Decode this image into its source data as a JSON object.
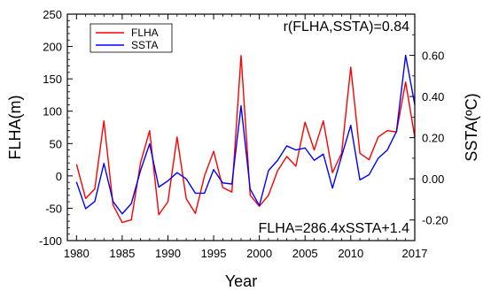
{
  "chart_data": {
    "type": "line",
    "title": "",
    "xlabel": "Year",
    "ylabel_left": "FLHA(m)",
    "ylabel_right": "SSTA(ºC)",
    "xlim": [
      1979,
      2017
    ],
    "ylim_left": [
      -100,
      250
    ],
    "ylim_right": [
      -0.3,
      0.8
    ],
    "x_ticks": [
      1980,
      1985,
      1990,
      1995,
      2000,
      2005,
      2010,
      2017
    ],
    "y_ticks_left": [
      -100,
      -50,
      0,
      50,
      100,
      150,
      200,
      250
    ],
    "y_ticks_right": [
      -0.2,
      0.0,
      0.2,
      0.4,
      0.6
    ],
    "y_tick_labels_left": [
      "-100",
      "-50",
      "0",
      "50",
      "100",
      "150",
      "200",
      "250"
    ],
    "y_tick_labels_right": [
      "-0.20",
      "0.00",
      "0.20",
      "0.40",
      "0.60"
    ],
    "x": [
      1980,
      1981,
      1982,
      1983,
      1984,
      1985,
      1986,
      1987,
      1988,
      1989,
      1990,
      1991,
      1992,
      1993,
      1994,
      1995,
      1996,
      1997,
      1998,
      1999,
      2000,
      2001,
      2002,
      2003,
      2004,
      2005,
      2006,
      2007,
      2008,
      2009,
      2010,
      2011,
      2012,
      2013,
      2014,
      2015,
      2016,
      2017
    ],
    "series": [
      {
        "name": "FLHA",
        "axis": "left",
        "color": "#ff0000",
        "values": [
          18,
          -35,
          -20,
          85,
          -45,
          -72,
          -68,
          20,
          70,
          -60,
          -40,
          60,
          -35,
          -58,
          0,
          38,
          -18,
          -25,
          186,
          -30,
          -47,
          -30,
          8,
          30,
          15,
          83,
          40,
          85,
          5,
          35,
          168,
          35,
          25,
          60,
          70,
          68,
          145,
          60
        ]
      },
      {
        "name": "SSTA",
        "axis": "right",
        "color": "#0000ff",
        "values": [
          -0.015,
          -0.145,
          -0.11,
          0.075,
          -0.11,
          -0.17,
          -0.12,
          0.04,
          0.17,
          -0.04,
          -0.01,
          0.03,
          0.0,
          -0.07,
          -0.07,
          0.045,
          -0.02,
          -0.025,
          0.355,
          -0.05,
          -0.13,
          0.04,
          0.09,
          0.16,
          0.14,
          0.15,
          0.09,
          0.12,
          -0.045,
          0.11,
          0.26,
          -0.005,
          0.02,
          0.1,
          0.14,
          0.23,
          0.6,
          0.36
        ]
      }
    ],
    "legend": {
      "placement": "top-left",
      "entries": [
        "FLHA",
        "SSTA"
      ]
    },
    "annotations": {
      "correlation": "r(FLHA,SSTA)=0.84",
      "regression": "FLHA=286.4xSSTA+1.4"
    },
    "grid": false
  }
}
